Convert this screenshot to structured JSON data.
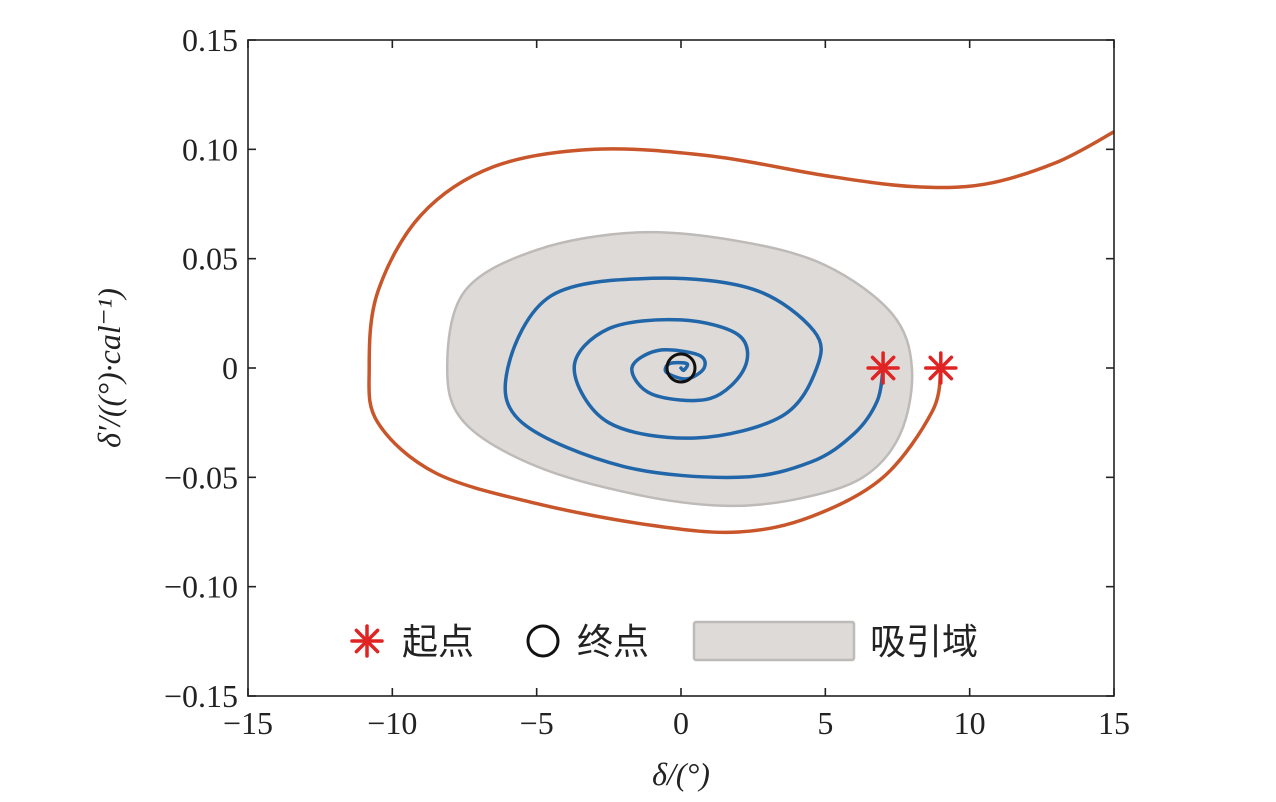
{
  "chart_data": {
    "type": "line",
    "title": "",
    "xlabel": "δ/(°)",
    "ylabel": "δ′/((°)·cal⁻¹)",
    "xlim": [
      -15,
      15
    ],
    "ylim": [
      -0.15,
      0.15
    ],
    "xticks": [
      "−15",
      "−10",
      "−5",
      "0",
      "5",
      "10",
      "15"
    ],
    "xtick_values": [
      -15,
      -10,
      -5,
      0,
      5,
      10,
      15
    ],
    "yticks": [
      "0.15",
      "0.10",
      "0.05",
      "0",
      "−0.05",
      "−0.10",
      "−0.15"
    ],
    "ytick_values": [
      0.15,
      0.1,
      0.05,
      0,
      -0.05,
      -0.1,
      -0.15
    ],
    "grid": false,
    "legend_position": "bottom-center",
    "legend": {
      "start_label": "起点",
      "end_label": "终点",
      "region_label": "吸引域"
    },
    "colors": {
      "stable_trajectory": "#2166a8",
      "unstable_trajectory": "#c8562a",
      "marker_star": "#e02424",
      "region_fill": "#dedad8",
      "region_stroke": "#bdbab8",
      "end_marker": "#111111"
    },
    "start_points": [
      {
        "x": 7,
        "y": 0
      },
      {
        "x": 9,
        "y": 0
      }
    ],
    "end_point": {
      "x": 0,
      "y": 0
    },
    "attraction_region": [
      {
        "x": 8.0,
        "y": 0.0
      },
      {
        "x": 7.6,
        "y": -0.03
      },
      {
        "x": 6.3,
        "y": -0.05
      },
      {
        "x": 4.0,
        "y": -0.06
      },
      {
        "x": 1.5,
        "y": -0.063
      },
      {
        "x": -1.5,
        "y": -0.058
      },
      {
        "x": -5.0,
        "y": -0.045
      },
      {
        "x": -7.5,
        "y": -0.025
      },
      {
        "x": -8.1,
        "y": 0.0
      },
      {
        "x": -7.5,
        "y": 0.035
      },
      {
        "x": -5.0,
        "y": 0.054
      },
      {
        "x": -1.5,
        "y": 0.062
      },
      {
        "x": 2.0,
        "y": 0.058
      },
      {
        "x": 5.0,
        "y": 0.047
      },
      {
        "x": 7.3,
        "y": 0.025
      }
    ],
    "series": [
      {
        "values": [
          {
            "x": 7.0,
            "y": 0.0
          },
          {
            "x": 6.8,
            "y": -0.015
          },
          {
            "x": 6.0,
            "y": -0.03
          },
          {
            "x": 4.5,
            "y": -0.043
          },
          {
            "x": 2.0,
            "y": -0.05
          },
          {
            "x": -2.0,
            "y": -0.045
          },
          {
            "x": -5.5,
            "y": -0.025
          },
          {
            "x": -6.0,
            "y": 0.0
          },
          {
            "x": -4.5,
            "y": 0.033
          },
          {
            "x": -1.0,
            "y": 0.041
          },
          {
            "x": 2.5,
            "y": 0.036
          },
          {
            "x": 4.6,
            "y": 0.017
          },
          {
            "x": 4.7,
            "y": 0.0
          },
          {
            "x": 3.5,
            "y": -0.022
          },
          {
            "x": 0.5,
            "y": -0.032
          },
          {
            "x": -2.5,
            "y": -0.025
          },
          {
            "x": -3.7,
            "y": 0.0
          },
          {
            "x": -2.5,
            "y": 0.018
          },
          {
            "x": 0.0,
            "y": 0.022
          },
          {
            "x": 2.0,
            "y": 0.015
          },
          {
            "x": 2.2,
            "y": 0.0
          },
          {
            "x": 1.0,
            "y": -0.014
          },
          {
            "x": -1.0,
            "y": -0.012
          },
          {
            "x": -1.7,
            "y": 0.0
          },
          {
            "x": -0.8,
            "y": 0.008
          },
          {
            "x": 0.6,
            "y": 0.006
          },
          {
            "x": 0.8,
            "y": 0.0
          },
          {
            "x": 0.2,
            "y": -0.005
          },
          {
            "x": -0.5,
            "y": -0.002
          },
          {
            "x": -0.4,
            "y": 0.002
          },
          {
            "x": 0.2,
            "y": 0.002
          },
          {
            "x": 0.1,
            "y": -0.001
          },
          {
            "x": 0.0,
            "y": 0.0
          }
        ]
      },
      {
        "values": [
          {
            "x": 9.0,
            "y": 0.0
          },
          {
            "x": 8.7,
            "y": -0.02
          },
          {
            "x": 7.0,
            "y": -0.05
          },
          {
            "x": 4.5,
            "y": -0.068
          },
          {
            "x": 2.0,
            "y": -0.075
          },
          {
            "x": -1.0,
            "y": -0.072
          },
          {
            "x": -5.0,
            "y": -0.062
          },
          {
            "x": -8.5,
            "y": -0.048
          },
          {
            "x": -10.5,
            "y": -0.025
          },
          {
            "x": -10.8,
            "y": 0.0
          },
          {
            "x": -10.5,
            "y": 0.035
          },
          {
            "x": -9.0,
            "y": 0.07
          },
          {
            "x": -6.5,
            "y": 0.092
          },
          {
            "x": -3.0,
            "y": 0.1
          },
          {
            "x": 1.0,
            "y": 0.097
          },
          {
            "x": 5.0,
            "y": 0.088
          },
          {
            "x": 8.0,
            "y": 0.083
          },
          {
            "x": 10.5,
            "y": 0.084
          },
          {
            "x": 13.0,
            "y": 0.094
          },
          {
            "x": 15.0,
            "y": 0.108
          }
        ]
      }
    ]
  }
}
